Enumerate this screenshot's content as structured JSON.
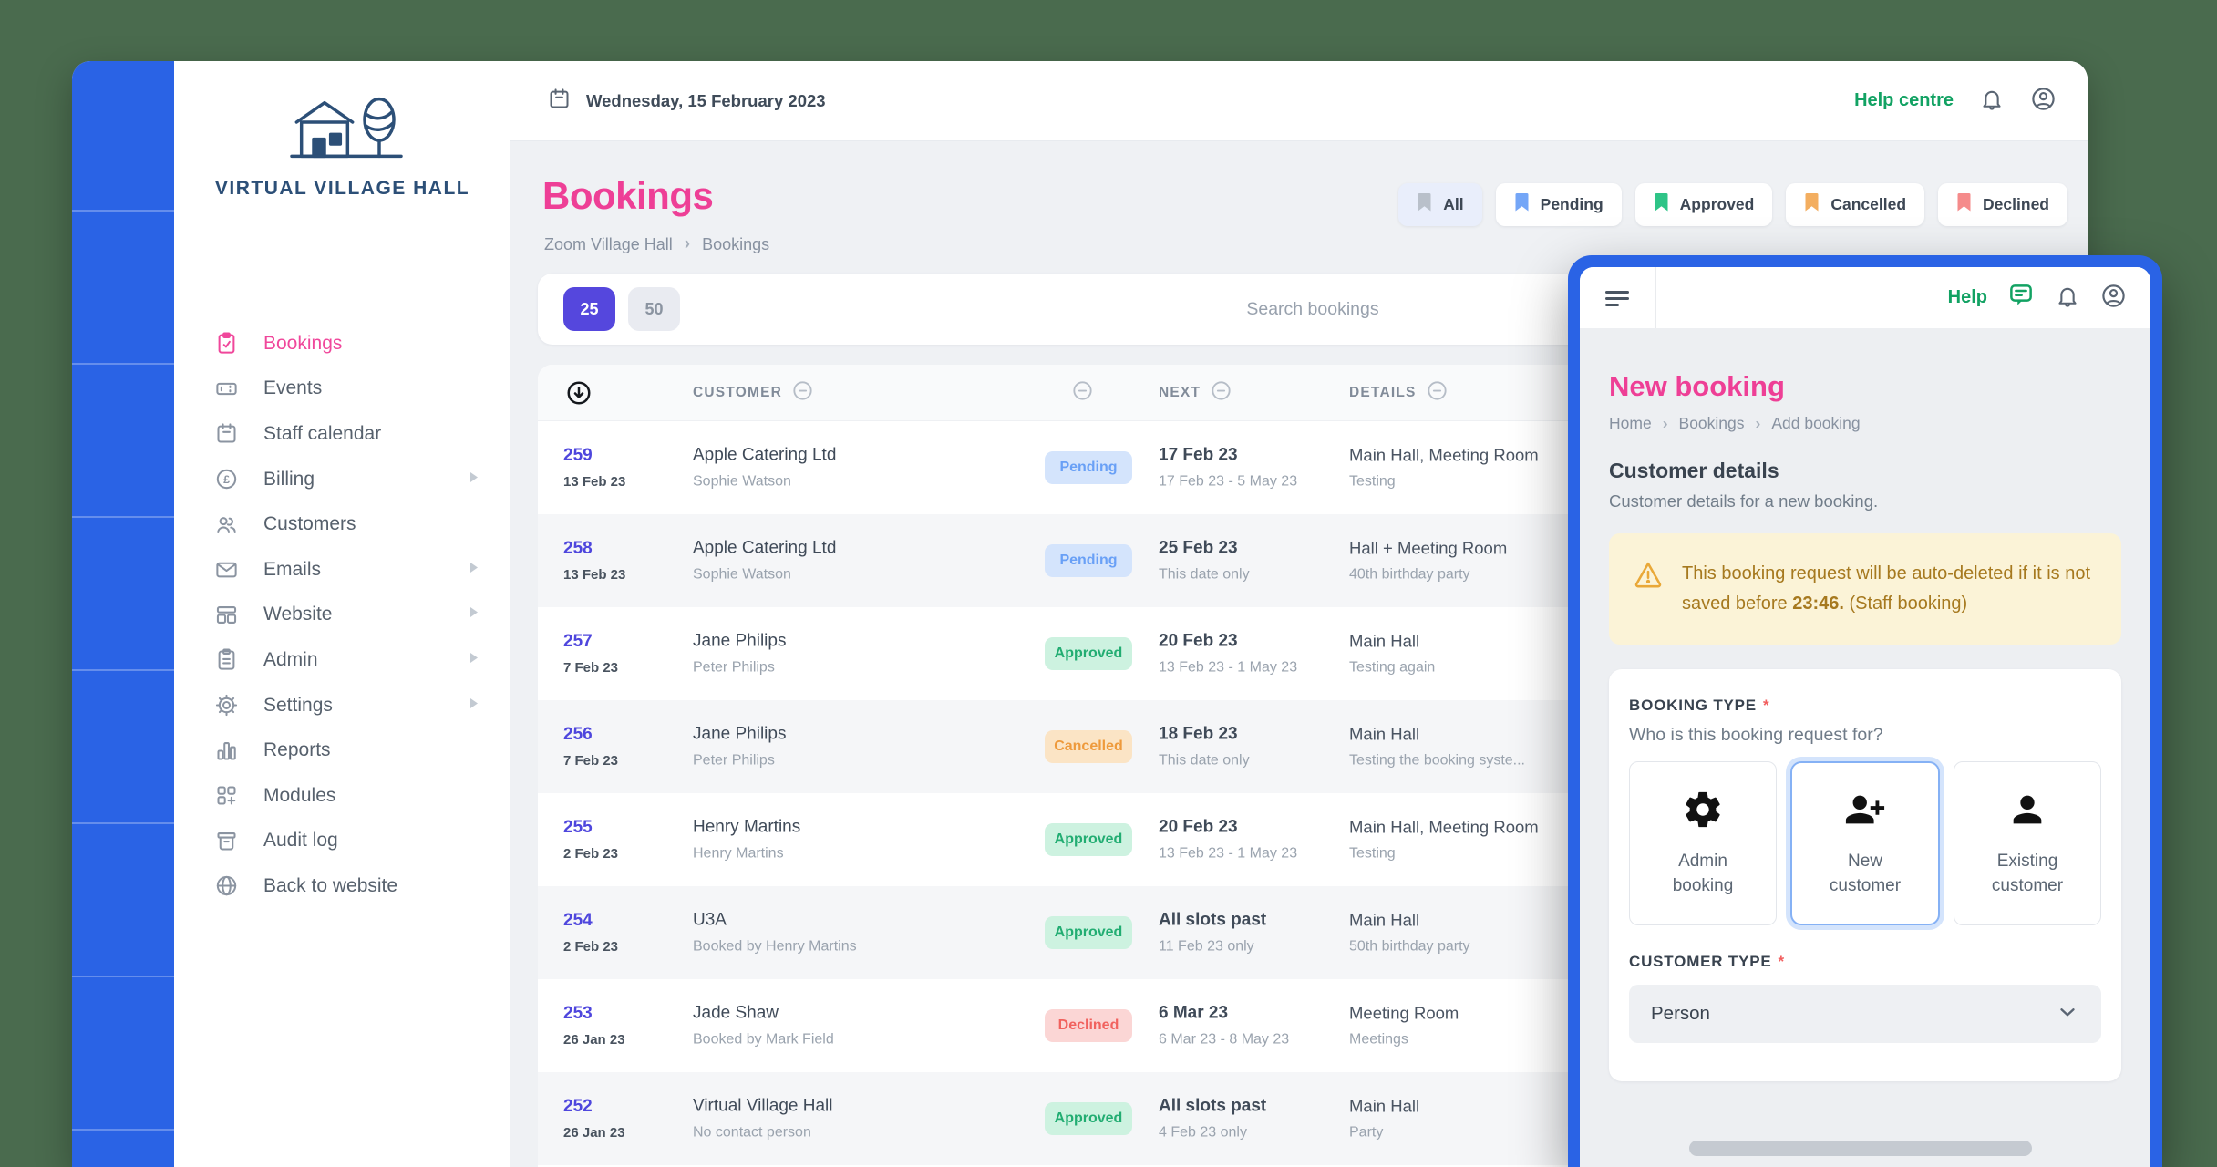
{
  "sidebar": {
    "logo_text": "VIRTUAL VILLAGE HALL",
    "items": [
      {
        "label": "Bookings",
        "icon": "clipboard-check",
        "active": true,
        "submenu": false
      },
      {
        "label": "Events",
        "icon": "ticket",
        "active": false,
        "submenu": false
      },
      {
        "label": "Staff calendar",
        "icon": "calendar",
        "active": false,
        "submenu": false
      },
      {
        "label": "Billing",
        "icon": "pound-circle",
        "active": false,
        "submenu": true
      },
      {
        "label": "Customers",
        "icon": "users",
        "active": false,
        "submenu": false
      },
      {
        "label": "Emails",
        "icon": "mail",
        "active": false,
        "submenu": true
      },
      {
        "label": "Website",
        "icon": "browser",
        "active": false,
        "submenu": true
      },
      {
        "label": "Admin",
        "icon": "clipboard-list",
        "active": false,
        "submenu": true
      },
      {
        "label": "Settings",
        "icon": "gear-outline",
        "active": false,
        "submenu": true
      },
      {
        "label": "Reports",
        "icon": "bar-chart",
        "active": false,
        "submenu": false
      },
      {
        "label": "Modules",
        "icon": "grid-plus",
        "active": false,
        "submenu": false
      },
      {
        "label": "Audit log",
        "icon": "archive",
        "active": false,
        "submenu": false
      },
      {
        "label": "Back to website",
        "icon": "globe",
        "active": false,
        "submenu": false
      }
    ]
  },
  "topbar": {
    "date": "Wednesday, 15 February 2023",
    "help_label": "Help centre"
  },
  "bookings": {
    "title": "Bookings",
    "breadcrumb": [
      "Zoom Village Hall",
      "Bookings"
    ],
    "filters": [
      {
        "label": "All",
        "color": "#b9c0ca",
        "active": true
      },
      {
        "label": "Pending",
        "color": "#74a6f7",
        "active": false
      },
      {
        "label": "Approved",
        "color": "#2ec487",
        "active": false
      },
      {
        "label": "Cancelled",
        "color": "#f3ae60",
        "active": false
      },
      {
        "label": "Declined",
        "color": "#f58b8b",
        "active": false
      }
    ],
    "page_sizes": [
      "25",
      "50"
    ],
    "active_page_size": "25",
    "search_placeholder": "Search bookings",
    "columns": {
      "customer": "CUSTOMER",
      "next": "NEXT",
      "details": "DETAILS"
    },
    "status_styles": {
      "Pending": {
        "bg": "#d4e4fc",
        "fg": "#69a0f6"
      },
      "Approved": {
        "bg": "#cdf2e0",
        "fg": "#22ad72"
      },
      "Cancelled": {
        "bg": "#fbe4c5",
        "fg": "#ee9a3c"
      },
      "Declined": {
        "bg": "#fbd6d5",
        "fg": "#f1625e"
      }
    },
    "rows": [
      {
        "id": "259",
        "created": "13 Feb 23",
        "customer": "Apple Catering Ltd",
        "contact": "Sophie Watson",
        "status": "Pending",
        "next": "17 Feb 23",
        "next_sub": "17 Feb 23 - 5 May 23",
        "details": "Main Hall, Meeting Room",
        "details_sub": "Testing"
      },
      {
        "id": "258",
        "created": "13 Feb 23",
        "customer": "Apple Catering Ltd",
        "contact": "Sophie Watson",
        "status": "Pending",
        "next": "25 Feb 23",
        "next_sub": "This date only",
        "details": "Hall + Meeting Room",
        "details_sub": "40th birthday party"
      },
      {
        "id": "257",
        "created": "7 Feb 23",
        "customer": "Jane Philips",
        "contact": "Peter Philips",
        "status": "Approved",
        "next": "20 Feb 23",
        "next_sub": "13 Feb 23 - 1 May 23",
        "details": "Main Hall",
        "details_sub": "Testing again"
      },
      {
        "id": "256",
        "created": "7 Feb 23",
        "customer": "Jane Philips",
        "contact": "Peter Philips",
        "status": "Cancelled",
        "next": "18 Feb 23",
        "next_sub": "This date only",
        "details": "Main Hall",
        "details_sub": "Testing the booking syste..."
      },
      {
        "id": "255",
        "created": "2 Feb 23",
        "customer": "Henry Martins",
        "contact": "Henry Martins",
        "status": "Approved",
        "next": "20 Feb 23",
        "next_sub": "13 Feb 23 - 1 May 23",
        "details": "Main Hall, Meeting Room",
        "details_sub": "Testing"
      },
      {
        "id": "254",
        "created": "2 Feb 23",
        "customer": "U3A",
        "contact": "Booked by Henry Martins",
        "status": "Approved",
        "next": "All slots past",
        "next_sub": "11 Feb 23 only",
        "details": "Main Hall",
        "details_sub": "50th birthday party"
      },
      {
        "id": "253",
        "created": "26 Jan 23",
        "customer": "Jade Shaw",
        "contact": "Booked by Mark Field",
        "status": "Declined",
        "next": "6 Mar 23",
        "next_sub": "6 Mar 23 - 8 May 23",
        "details": "Meeting Room",
        "details_sub": "Meetings"
      },
      {
        "id": "252",
        "created": "26 Jan 23",
        "customer": "Virtual Village Hall",
        "contact": "No contact person",
        "status": "Approved",
        "next": "All slots past",
        "next_sub": "4 Feb 23 only",
        "details": "Main Hall",
        "details_sub": "Party"
      }
    ]
  },
  "overlay": {
    "help_label": "Help",
    "title": "New booking",
    "breadcrumb": [
      "Home",
      "Bookings",
      "Add booking"
    ],
    "section_title": "Customer details",
    "section_sub": "Customer details for a new booking.",
    "warning": {
      "text_before": "This booking request will be auto-deleted if it is not saved before ",
      "bold": "23:46.",
      "text_after": " (Staff booking)"
    },
    "booking_type_label": "BOOKING TYPE",
    "required_marker": "*",
    "booking_type_question": "Who is this booking request for?",
    "booking_type_options": [
      {
        "label": "Admin booking",
        "icon": "gear-solid",
        "selected": false
      },
      {
        "label": "New customer",
        "icon": "person-plus",
        "selected": true
      },
      {
        "label": "Existing customer",
        "icon": "person",
        "selected": false
      }
    ],
    "customer_type_label": "CUSTOMER TYPE",
    "customer_type_value": "Person"
  }
}
